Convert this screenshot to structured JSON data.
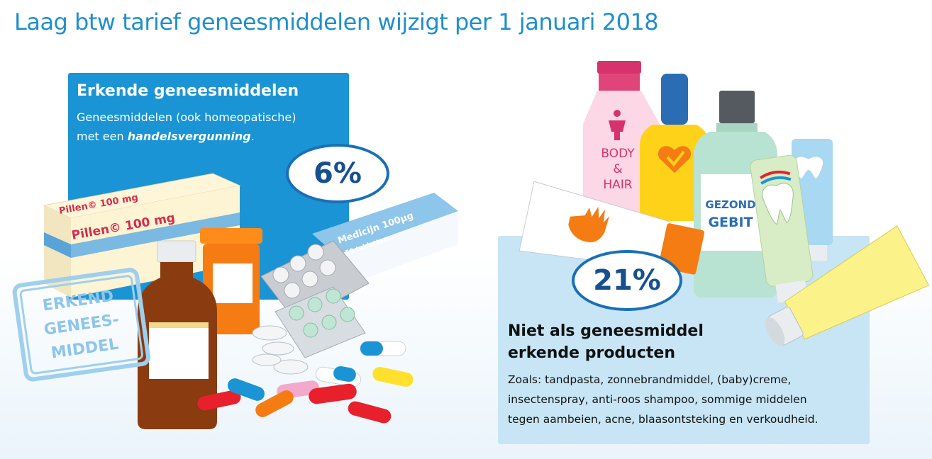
{
  "header": {
    "title": "Laag btw tarief geneesmiddelen wijzigt per 1 januari 2018"
  },
  "left": {
    "heading": "Erkende geneesmiddelen",
    "desc_line1": "Geneesmiddelen (ook homeopatische)",
    "desc_line2_prefix": "met een ",
    "desc_line2_emph": "handelsvergunning",
    "desc_line2_suffix": ".",
    "rate": "6%",
    "stamp_line1": "ERKEND",
    "stamp_line2": "GENEES-",
    "stamp_line3": "MIDDEL",
    "pill_box_label": "Pillen© 100 mg",
    "pill_box_label_top": "Pillen© 100 mg",
    "medicine_box_label": "Medicijn 100µg",
    "medicine_box_sub": "50 tabletten"
  },
  "right": {
    "heading_line1": "Niet als geneesmiddel",
    "heading_line2": "erkende producten",
    "desc_line1": "Zoals: tandpasta, zonnebrandmiddel, (baby)creme,",
    "desc_line2": "insectenspray, anti-roos shampoo, sommige middelen",
    "desc_line3": "tegen aambeien, acne, blaasontsteking en verkoudheid.",
    "rate": "21%",
    "bottle_label_1": "BODY",
    "bottle_label_2": "&",
    "bottle_label_3": "HAIR",
    "mouthwash_label_1": "GEZOND",
    "mouthwash_label_2": "GEBIT"
  },
  "colors": {
    "brand_blue": "#1a94d4",
    "title_blue": "#1f8fce",
    "badge_border": "#1a6fb8",
    "right_panel": "#c7e5f5"
  }
}
